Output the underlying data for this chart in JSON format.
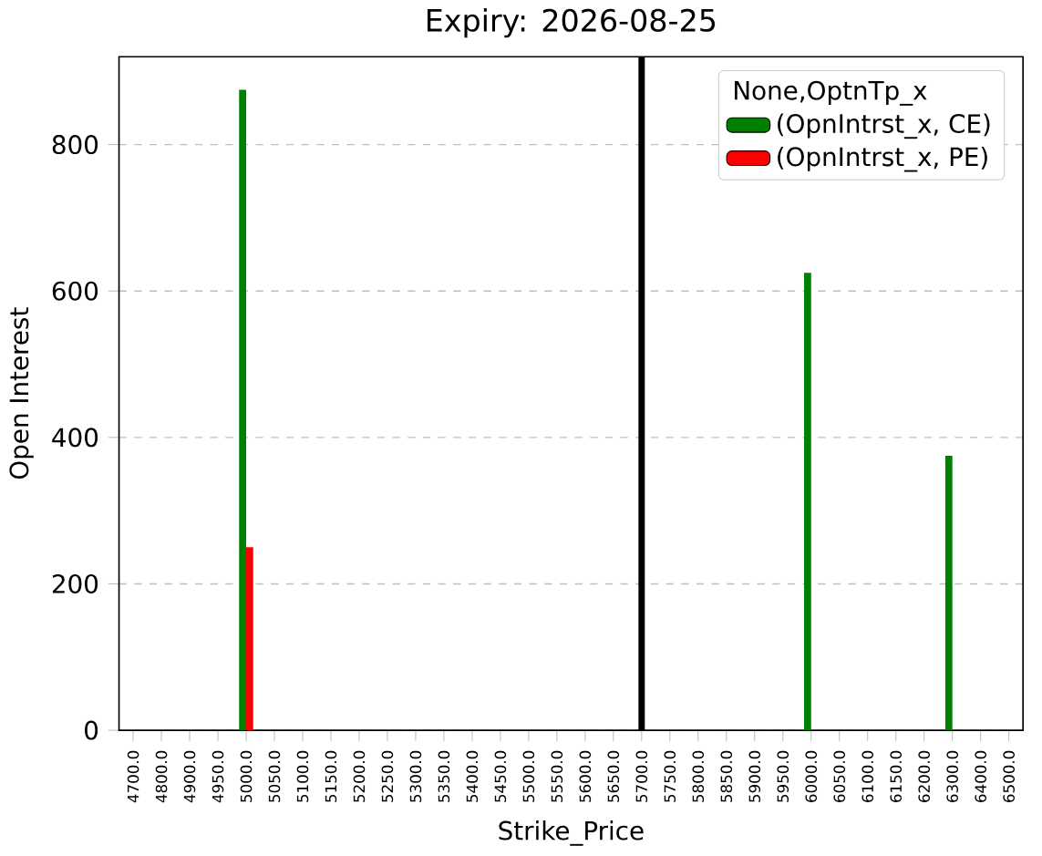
{
  "chart_data": {
    "type": "bar",
    "title": "Expiry: 2026-08-25",
    "xlabel": "Strike_Price",
    "ylabel": "Open Interest",
    "legend_title": "None,OptnTp_x",
    "categories": [
      "4700.0",
      "4800.0",
      "4900.0",
      "4950.0",
      "5000.0",
      "5050.0",
      "5100.0",
      "5150.0",
      "5200.0",
      "5250.0",
      "5300.0",
      "5350.0",
      "5400.0",
      "5450.0",
      "5500.0",
      "5550.0",
      "5600.0",
      "5650.0",
      "5700.0",
      "5750.0",
      "5800.0",
      "5850.0",
      "5900.0",
      "5950.0",
      "6000.0",
      "6050.0",
      "6100.0",
      "6150.0",
      "6200.0",
      "6300.0",
      "6400.0",
      "6500.0"
    ],
    "series": [
      {
        "name": "(OpnIntrst_x, CE)",
        "color": "#008000",
        "values": [
          0,
          0,
          0,
          0,
          875,
          0,
          0,
          0,
          0,
          0,
          0,
          0,
          0,
          0,
          0,
          0,
          0,
          0,
          0,
          0,
          0,
          0,
          0,
          0,
          625,
          0,
          0,
          0,
          0,
          375,
          0,
          0
        ]
      },
      {
        "name": "(OpnIntrst_x, PE)",
        "color": "#ff0000",
        "values": [
          0,
          0,
          0,
          0,
          250,
          0,
          0,
          0,
          0,
          0,
          0,
          0,
          0,
          0,
          0,
          0,
          0,
          0,
          0,
          0,
          0,
          0,
          0,
          0,
          0,
          0,
          0,
          0,
          0,
          0,
          0,
          0
        ]
      }
    ],
    "ylim": [
      0,
      920
    ],
    "yticks": [
      0,
      200,
      400,
      600,
      800
    ],
    "grid": "y",
    "legend": "top right",
    "ref_lines": [
      {
        "axis": "x",
        "value": "5700.0",
        "color": "#000000"
      }
    ]
  }
}
